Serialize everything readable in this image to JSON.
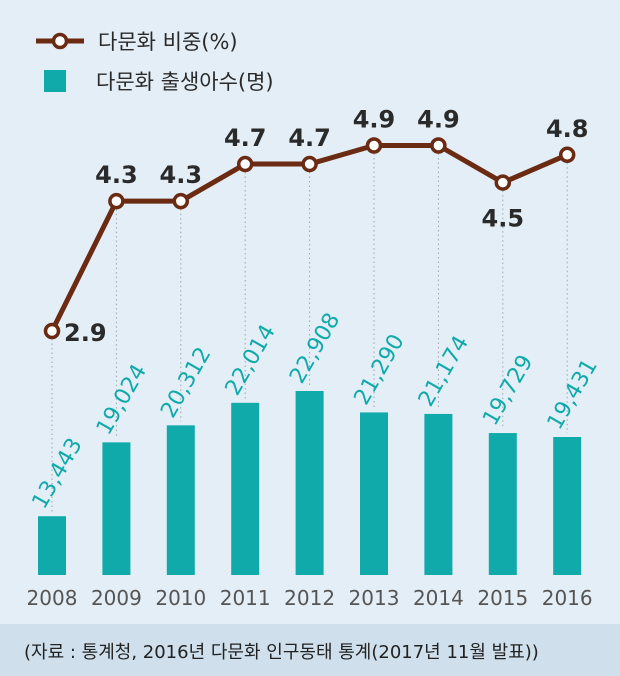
{
  "legend": {
    "line_label": "다문화 비중(%)",
    "bar_label": "다문화 출생아수(명)"
  },
  "footnote": "(자료 : 통계청, 2016년 다문화 인구동태 통계(2017년 11월 발표))",
  "colors": {
    "line": "#6b2a12",
    "bar": "#10aaab",
    "background": "#e4eef6",
    "footnote_bg": "#cfe0ec"
  },
  "chart_data": {
    "type": "bar",
    "categories": [
      "2008",
      "2009",
      "2010",
      "2011",
      "2012",
      "2013",
      "2014",
      "2015",
      "2016"
    ],
    "series": [
      {
        "name": "다문화 출생아수(명)",
        "type": "bar",
        "values": [
          13443,
          19024,
          20312,
          22014,
          22908,
          21290,
          21174,
          19729,
          19431
        ],
        "labels": [
          "13,443",
          "19,024",
          "20,312",
          "22,014",
          "22,908",
          "21,290",
          "21,174",
          "19,729",
          "19,431"
        ]
      },
      {
        "name": "다문화 비중(%)",
        "type": "line",
        "values": [
          2.9,
          4.3,
          4.3,
          4.7,
          4.7,
          4.9,
          4.9,
          4.5,
          4.8
        ],
        "labels": [
          "2.9",
          "4.3",
          "4.3",
          "4.7",
          "4.7",
          "4.9",
          "4.9",
          "4.5",
          "4.8"
        ]
      }
    ],
    "grid": false,
    "legend_position": "top-left"
  }
}
